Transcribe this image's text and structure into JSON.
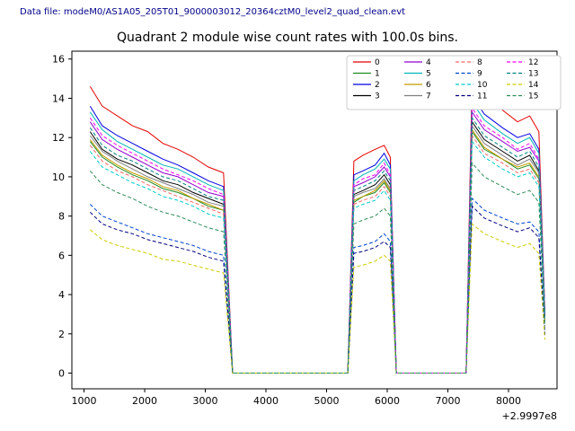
{
  "chart_data": {
    "type": "line",
    "datafile": "Data file: modeM0/AS1A05_205T01_9000003012_20364cztM0_level2_quad_clean.evt",
    "title": "Quadrant 2 module wise count rates with 100.0s bins.",
    "xlabel": "",
    "ylabel": "",
    "x_offset_label": "+2.9997e8",
    "xlim": [
      800,
      8800
    ],
    "ylim": [
      -0.8,
      16.4
    ],
    "x_ticks": [
      1000,
      2000,
      3000,
      4000,
      5000,
      6000,
      7000,
      8000
    ],
    "y_ticks": [
      0,
      2,
      4,
      6,
      8,
      10,
      12,
      14,
      16
    ],
    "grid": false,
    "legend": {
      "position": "upper right",
      "columns": 4
    },
    "x": [
      1100,
      1300,
      1550,
      1800,
      2050,
      2300,
      2550,
      2800,
      3050,
      3300,
      3450,
      5350,
      5450,
      5600,
      5800,
      5950,
      6050,
      6150,
      7300,
      7400,
      7600,
      7900,
      8150,
      8350,
      8500,
      8600
    ],
    "series": [
      {
        "name": "0",
        "color": "#e60000",
        "dash": false,
        "values": [
          14.6,
          13.6,
          13.1,
          12.6,
          12.3,
          11.7,
          11.4,
          11.0,
          10.5,
          10.2,
          0,
          0,
          10.8,
          11.1,
          11.4,
          11.6,
          11.0,
          0,
          0,
          15.2,
          14.2,
          13.4,
          12.8,
          13.1,
          12.3,
          3.1
        ]
      },
      {
        "name": "1",
        "color": "#228b22",
        "dash": false,
        "values": [
          11.8,
          11.0,
          10.5,
          10.1,
          9.8,
          9.4,
          9.2,
          8.9,
          8.5,
          8.3,
          0,
          0,
          8.7,
          9.0,
          9.2,
          9.7,
          9.2,
          0,
          0,
          12.3,
          11.4,
          10.9,
          10.4,
          10.6,
          9.9,
          2.7
        ]
      },
      {
        "name": "2",
        "color": "#0000e6",
        "dash": false,
        "values": [
          13.6,
          12.6,
          12.1,
          11.7,
          11.3,
          10.9,
          10.6,
          10.2,
          9.8,
          9.5,
          0,
          0,
          10.1,
          10.3,
          10.6,
          11.2,
          10.6,
          0,
          0,
          14.1,
          13.2,
          12.5,
          12.0,
          12.2,
          11.4,
          3.0
        ]
      },
      {
        "name": "3",
        "color": "#000000",
        "dash": false,
        "values": [
          12.3,
          11.4,
          10.9,
          10.6,
          10.2,
          9.8,
          9.6,
          9.2,
          8.9,
          8.6,
          0,
          0,
          9.1,
          9.3,
          9.6,
          10.1,
          9.6,
          0,
          0,
          12.8,
          11.9,
          11.3,
          10.8,
          11.1,
          10.3,
          2.8
        ]
      },
      {
        "name": "4",
        "color": "#9400d3",
        "dash": false,
        "values": [
          12.8,
          11.9,
          11.4,
          11.0,
          10.6,
          10.2,
          10.0,
          9.6,
          9.2,
          9.0,
          0,
          0,
          9.5,
          9.7,
          10.0,
          10.5,
          10.0,
          0,
          0,
          13.3,
          12.4,
          11.8,
          11.3,
          11.5,
          10.8,
          2.9
        ]
      },
      {
        "name": "5",
        "color": "#00b7b7",
        "dash": false,
        "values": [
          13.3,
          12.4,
          11.8,
          11.4,
          11.0,
          10.6,
          10.4,
          10.0,
          9.6,
          9.3,
          0,
          0,
          9.8,
          10.1,
          10.4,
          10.9,
          10.4,
          0,
          0,
          13.8,
          12.9,
          12.2,
          11.7,
          12.0,
          11.2,
          3.0
        ]
      },
      {
        "name": "6",
        "color": "#c49c00",
        "dash": false,
        "values": [
          11.9,
          11.1,
          10.6,
          10.2,
          9.9,
          9.5,
          9.3,
          8.9,
          8.6,
          8.3,
          0,
          0,
          8.8,
          9.0,
          9.3,
          9.8,
          9.3,
          0,
          0,
          12.4,
          11.5,
          10.9,
          10.5,
          10.7,
          10.0,
          2.7
        ]
      },
      {
        "name": "7",
        "color": "#808080",
        "dash": false,
        "values": [
          12.1,
          11.3,
          10.8,
          10.4,
          10.0,
          9.7,
          9.4,
          9.1,
          8.7,
          8.5,
          0,
          0,
          9.0,
          9.2,
          9.4,
          9.9,
          9.4,
          0,
          0,
          12.6,
          11.7,
          11.1,
          10.6,
          10.9,
          10.2,
          2.8
        ]
      },
      {
        "name": "8",
        "color": "#ff6666",
        "dash": true,
        "values": [
          11.6,
          10.8,
          10.3,
          10.0,
          9.6,
          9.3,
          9.0,
          8.7,
          8.4,
          8.1,
          0,
          0,
          8.6,
          8.8,
          9.0,
          9.5,
          9.0,
          0,
          0,
          12.1,
          11.2,
          10.7,
          10.2,
          10.4,
          9.7,
          2.6
        ]
      },
      {
        "name": "9",
        "color": "#0044cc",
        "dash": true,
        "values": [
          8.6,
          8.0,
          7.7,
          7.4,
          7.1,
          6.9,
          6.7,
          6.5,
          6.2,
          6.0,
          0,
          0,
          6.4,
          6.5,
          6.7,
          7.1,
          6.7,
          0,
          0,
          8.9,
          8.3,
          7.9,
          7.6,
          7.7,
          7.2,
          2.0
        ]
      },
      {
        "name": "10",
        "color": "#00cccc",
        "dash": true,
        "values": [
          11.3,
          10.5,
          10.1,
          9.7,
          9.4,
          9.0,
          8.8,
          8.5,
          8.1,
          7.9,
          0,
          0,
          8.4,
          8.6,
          8.8,
          9.3,
          8.8,
          0,
          0,
          11.8,
          11.0,
          10.4,
          10.0,
          10.2,
          9.5,
          2.6
        ]
      },
      {
        "name": "11",
        "color": "#000080",
        "dash": true,
        "values": [
          8.2,
          7.6,
          7.3,
          7.1,
          6.8,
          6.6,
          6.4,
          6.2,
          5.9,
          5.7,
          0,
          0,
          6.1,
          6.2,
          6.4,
          6.7,
          6.4,
          0,
          0,
          8.5,
          7.9,
          7.5,
          7.2,
          7.4,
          6.9,
          1.9
        ]
      },
      {
        "name": "12",
        "color": "#ff00ff",
        "dash": true,
        "values": [
          13.0,
          12.1,
          11.6,
          11.2,
          10.8,
          10.4,
          10.1,
          9.8,
          9.4,
          9.1,
          0,
          0,
          9.6,
          9.9,
          10.1,
          10.7,
          10.1,
          0,
          0,
          13.5,
          12.6,
          12.0,
          11.4,
          11.7,
          10.9,
          2.9
        ]
      },
      {
        "name": "13",
        "color": "#008080",
        "dash": true,
        "values": [
          12.5,
          11.6,
          11.1,
          10.8,
          10.4,
          10.0,
          9.8,
          9.4,
          9.0,
          8.8,
          0,
          0,
          9.3,
          9.5,
          9.8,
          10.3,
          9.8,
          0,
          0,
          13.0,
          12.1,
          11.5,
          11.0,
          11.3,
          10.5,
          2.8
        ]
      },
      {
        "name": "14",
        "color": "#cccc00",
        "dash": true,
        "values": [
          7.3,
          6.8,
          6.5,
          6.3,
          6.1,
          5.8,
          5.7,
          5.5,
          5.3,
          5.1,
          0,
          0,
          5.4,
          5.5,
          5.7,
          6.0,
          5.7,
          0,
          0,
          7.6,
          7.1,
          6.7,
          6.4,
          6.6,
          6.1,
          1.7
        ]
      },
      {
        "name": "15",
        "color": "#2e8b57",
        "dash": true,
        "values": [
          10.3,
          9.6,
          9.2,
          8.9,
          8.5,
          8.2,
          8.0,
          7.7,
          7.4,
          7.2,
          0,
          0,
          7.6,
          7.8,
          8.0,
          8.4,
          8.0,
          0,
          0,
          10.7,
          10.0,
          9.5,
          9.1,
          9.3,
          8.7,
          2.4
        ]
      }
    ]
  }
}
